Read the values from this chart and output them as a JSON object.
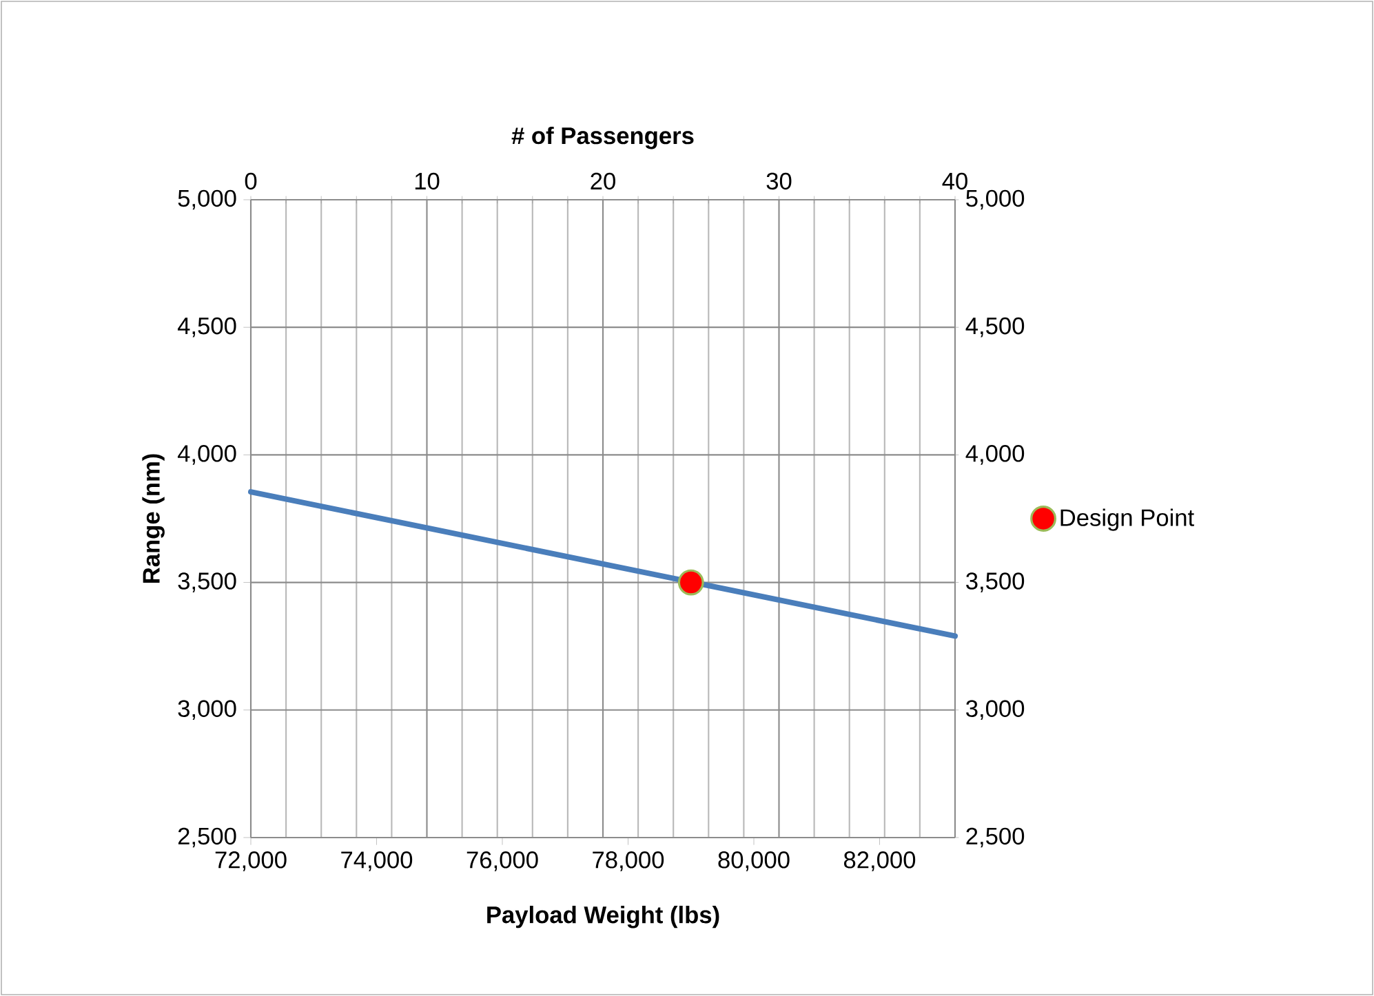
{
  "chart_data": {
    "type": "line",
    "xlabel": "Payload Weight (lbs)",
    "ylabel": "Range (nm)",
    "x2label": "# of Passengers",
    "xlim": [
      72000,
      83200
    ],
    "xticks": [
      {
        "value": 72000,
        "label": "72,000"
      },
      {
        "value": 74000,
        "label": "74,000"
      },
      {
        "value": 76000,
        "label": "76,000"
      },
      {
        "value": 78000,
        "label": "78,000"
      },
      {
        "value": 80000,
        "label": "80,000"
      },
      {
        "value": 82000,
        "label": "82,000"
      }
    ],
    "ylim": [
      2500,
      5000
    ],
    "yticks": [
      {
        "value": 2500,
        "label": "2,500"
      },
      {
        "value": 3000,
        "label": "3,000"
      },
      {
        "value": 3500,
        "label": "3,500"
      },
      {
        "value": 4000,
        "label": "4,000"
      },
      {
        "value": 4500,
        "label": "4,500"
      },
      {
        "value": 5000,
        "label": "5,000"
      }
    ],
    "y2lim": [
      2500,
      5000
    ],
    "y2ticks": [
      {
        "value": 2500,
        "label": "2,500"
      },
      {
        "value": 3000,
        "label": "3,000"
      },
      {
        "value": 3500,
        "label": "3,500"
      },
      {
        "value": 4000,
        "label": "4,000"
      },
      {
        "value": 4500,
        "label": "4,500"
      },
      {
        "value": 5000,
        "label": "5,000"
      }
    ],
    "x2lim": [
      0,
      40
    ],
    "x2ticks": [
      0,
      {
        "value": 2,
        "label": null
      },
      {
        "value": 4,
        "label": null
      },
      {
        "value": 6,
        "label": null
      },
      {
        "value": 8,
        "label": null
      },
      10,
      {
        "value": 12,
        "label": null
      },
      {
        "value": 14,
        "label": null
      },
      {
        "value": 16,
        "label": null
      },
      {
        "value": 18,
        "label": null
      },
      20,
      {
        "value": 22,
        "label": null
      },
      {
        "value": 24,
        "label": null
      },
      {
        "value": 26,
        "label": null
      },
      {
        "value": 28,
        "label": null
      },
      30,
      {
        "value": 32,
        "label": null
      },
      {
        "value": 34,
        "label": null
      },
      {
        "value": 36,
        "label": null
      },
      {
        "value": 38,
        "label": null
      },
      40
    ],
    "grid": true,
    "legend": "right",
    "series": [
      {
        "color": "#4a7ebb",
        "marker": "none",
        "x": [
          72000,
          83200
        ],
        "values": [
          3855,
          3290
        ]
      },
      {
        "type": "scatter",
        "name": "Design Point",
        "color": "#ff0000",
        "marker": "circle",
        "x": [
          79000
        ],
        "values": [
          3500
        ]
      }
    ]
  }
}
